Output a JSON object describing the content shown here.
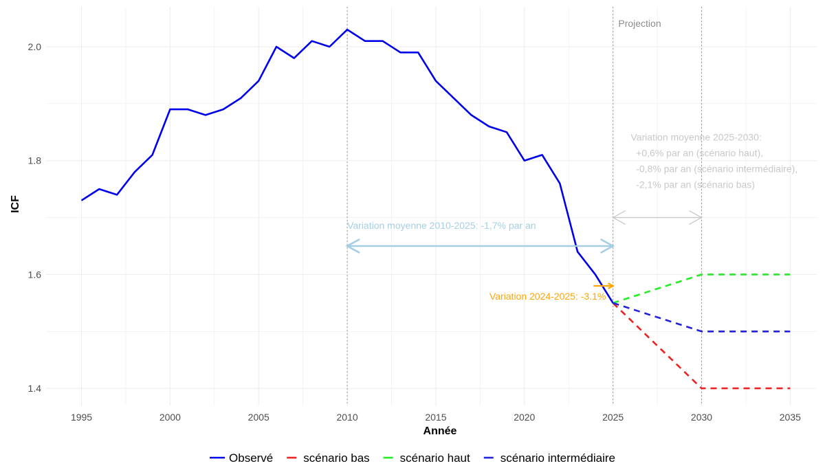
{
  "chart_data": {
    "type": "line",
    "xlabel": "Année",
    "ylabel": "ICF",
    "xlim": [
      1993,
      2036.5
    ],
    "ylim": [
      1.37,
      2.07
    ],
    "x_ticks": [
      1995,
      2000,
      2005,
      2010,
      2015,
      2020,
      2025,
      2030,
      2035
    ],
    "y_ticks": [
      1.4,
      1.6,
      1.8,
      2.0
    ],
    "y_tick_labels": [
      "1.4",
      "1.6",
      "1.8",
      "2.0"
    ],
    "grid": true,
    "legend_position": "bottom",
    "series": [
      {
        "name": "Observé",
        "color": "#0000ee",
        "dash": "solid",
        "x": [
          1995,
          1996,
          1997,
          1998,
          1999,
          2000,
          2001,
          2002,
          2003,
          2004,
          2005,
          2006,
          2007,
          2008,
          2009,
          2010,
          2011,
          2012,
          2013,
          2014,
          2015,
          2016,
          2017,
          2018,
          2019,
          2020,
          2021,
          2022,
          2023,
          2024,
          2025
        ],
        "y": [
          1.73,
          1.75,
          1.74,
          1.78,
          1.81,
          1.89,
          1.89,
          1.88,
          1.89,
          1.91,
          1.94,
          2.0,
          1.98,
          2.01,
          2.0,
          2.03,
          2.01,
          2.01,
          1.99,
          1.99,
          1.94,
          1.91,
          1.88,
          1.86,
          1.85,
          1.8,
          1.81,
          1.76,
          1.64,
          1.6,
          1.55
        ]
      },
      {
        "name": "scénario bas",
        "color": "#ee2222",
        "dash": "dashed",
        "x": [
          2025,
          2030,
          2035
        ],
        "y": [
          1.55,
          1.4,
          1.4
        ]
      },
      {
        "name": "scénario haut",
        "color": "#22ee22",
        "dash": "dashed",
        "x": [
          2025,
          2030,
          2035
        ],
        "y": [
          1.55,
          1.6,
          1.6
        ]
      },
      {
        "name": "scénario intermédiaire",
        "color": "#2222dd",
        "dash": "dashed",
        "x": [
          2025,
          2030,
          2035
        ],
        "y": [
          1.55,
          1.5,
          1.5
        ]
      }
    ],
    "vertical_lines": [
      2010,
      2025,
      2030
    ],
    "annotations": {
      "projection": {
        "text": "Projection",
        "x": 2025.3,
        "y": 2.035,
        "color": "#8c8c8c"
      },
      "variation_2010_2025": {
        "text": "Variation moyenne 2010-2025: -1,7% par an",
        "color": "#a6cee3",
        "arrow_from": [
          2010,
          1.65
        ],
        "arrow_to": [
          2025,
          1.65
        ],
        "text_x": 2010,
        "text_y": 1.68
      },
      "variation_2025_2030": {
        "lines": [
          "Variation moyenne 2025-2030:",
          "  +0,6% par an (scénario haut),",
          "  -0,8% par an (scénario intermédiaire),",
          "  -2,1% par an (scénario bas)"
        ],
        "color": "#c8c8c8",
        "arrow_from": [
          2025,
          1.7
        ],
        "arrow_to": [
          2030,
          1.7
        ],
        "text_x": 2026,
        "text_y": 1.835
      },
      "variation_2024_2025": {
        "text": "Variation 2024-2025: -3.1%",
        "color": "#ffa500",
        "arrow_from": [
          2023.9,
          1.58
        ],
        "arrow_to": [
          2025,
          1.58
        ],
        "text_x": 2024.6,
        "text_y": 1.556
      }
    }
  }
}
